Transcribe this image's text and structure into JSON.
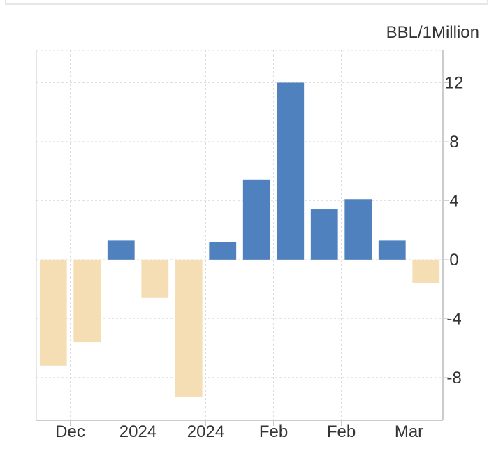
{
  "chart_data": {
    "type": "bar",
    "title": "",
    "unit_label": "BBL/1Million",
    "xlabel": "",
    "ylabel": "",
    "ylim": [
      -10.9,
      14.2
    ],
    "yticks": [
      12,
      8,
      4,
      0,
      -4,
      -8
    ],
    "ytick_labels": [
      "12",
      "8",
      "4",
      "0",
      "-4",
      "-8"
    ],
    "x_tick_labels": [
      {
        "label": "Dec",
        "after_bar": 1
      },
      {
        "label": "2024",
        "after_bar": 3
      },
      {
        "label": "2024",
        "after_bar": 5
      },
      {
        "label": "Feb",
        "after_bar": 7
      },
      {
        "label": "Feb",
        "after_bar": 9
      },
      {
        "label": "Mar",
        "after_bar": 11
      }
    ],
    "values": [
      -7.2,
      -5.6,
      1.3,
      -2.6,
      -9.3,
      1.2,
      5.4,
      12.0,
      3.4,
      4.1,
      1.3,
      -1.6
    ],
    "grid": true,
    "legend": "none",
    "colors": {
      "positive": "#4e81bd",
      "negative": "#f5deb3",
      "grid": "#dddddd",
      "axis": "#cccccc",
      "frame": "#e6e6e6"
    }
  }
}
